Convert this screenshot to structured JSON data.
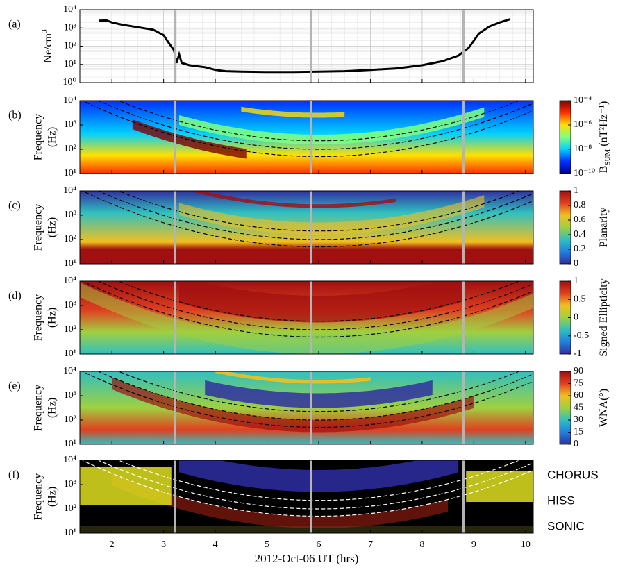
{
  "chart_data": {
    "xlabel": "2012-Oct-06 UT (hrs)",
    "xlim": [
      1.38,
      10.15
    ],
    "xticks": [
      2,
      3,
      4,
      5,
      6,
      7,
      8,
      9,
      10
    ],
    "vlines": [
      3.22,
      5.85,
      8.8
    ],
    "panels": [
      {
        "type": "line",
        "panel_label": "(a)",
        "ylabel": "Ne/cm",
        "ylabel_sup": "3",
        "log_y": true,
        "grid": true,
        "color": "#000000",
        "ylim": [
          1,
          10000
        ],
        "yticks": [
          {
            "value": 1,
            "label": "10⁰"
          },
          {
            "value": 10,
            "label": "10¹"
          },
          {
            "value": 100,
            "label": "10²"
          },
          {
            "value": 1000,
            "label": "10³"
          },
          {
            "value": 10000,
            "label": "10⁴"
          }
        ],
        "x": [
          1.75,
          1.9,
          2.0,
          2.2,
          2.5,
          2.8,
          3.0,
          3.1,
          3.2,
          3.25,
          3.3,
          3.35,
          3.5,
          3.8,
          4.0,
          4.2,
          4.5,
          5.0,
          5.5,
          6.0,
          6.5,
          7.0,
          7.5,
          8.0,
          8.4,
          8.7,
          8.9,
          9.1,
          9.3,
          9.5,
          9.7
        ],
        "values": [
          2500,
          2600,
          2000,
          1500,
          1100,
          800,
          400,
          150,
          60,
          12,
          35,
          12,
          9,
          7,
          5,
          4.2,
          4,
          3.8,
          3.8,
          4,
          4.2,
          5,
          6,
          9,
          15,
          30,
          80,
          500,
          1200,
          2000,
          3000
        ]
      },
      {
        "type": "spectrogram",
        "panel_label": "(b)",
        "ylabel": [
          "Frequency",
          "(Hz)"
        ],
        "log_y": true,
        "ylim": [
          10,
          10000
        ],
        "yticks": [
          {
            "value": 10,
            "label": "10¹"
          },
          {
            "value": 100,
            "label": "10²"
          },
          {
            "value": 1000,
            "label": "10³"
          },
          {
            "value": 10000,
            "label": "10⁴"
          }
        ],
        "colorbar": {
          "label": "B",
          "label_sub": "SUM",
          "label_rest": " (nT²Hz⁻¹)",
          "log": true,
          "lim": [
            1e-10,
            0.0001
          ],
          "ticks": [
            {
              "value": 0.0001,
              "label": "10⁻⁴"
            },
            {
              "value": 1e-06,
              "label": "10⁻⁶"
            },
            {
              "value": 1e-08,
              "label": "10⁻⁸"
            },
            {
              "value": 1e-10,
              "label": "10⁻¹⁰"
            }
          ],
          "colormap": [
            "#00008f",
            "#0030ff",
            "#00d0ff",
            "#80ff80",
            "#ffe000",
            "#ff3000",
            "#800000"
          ]
        }
      },
      {
        "type": "spectrogram",
        "panel_label": "(c)",
        "ylabel": [
          "Frequency",
          "(Hz)"
        ],
        "log_y": true,
        "ylim": [
          10,
          10000
        ],
        "yticks": [
          {
            "value": 10,
            "label": "10¹"
          },
          {
            "value": 100,
            "label": "10²"
          },
          {
            "value": 1000,
            "label": "10³"
          },
          {
            "value": 10000,
            "label": "10⁴"
          }
        ],
        "colorbar": {
          "label": "Planarity",
          "log": false,
          "lim": [
            0,
            1
          ],
          "ticks": [
            0,
            0.2,
            0.4,
            0.6,
            0.8,
            1
          ],
          "colormap": [
            "#3030a0",
            "#2080e0",
            "#30c0c0",
            "#a0d040",
            "#f0c020",
            "#e04020",
            "#a01010"
          ]
        }
      },
      {
        "type": "spectrogram",
        "panel_label": "(d)",
        "ylabel": [
          "Frequency",
          "(Hz)"
        ],
        "log_y": true,
        "ylim": [
          10,
          10000
        ],
        "yticks": [
          {
            "value": 10,
            "label": "10¹"
          },
          {
            "value": 100,
            "label": "10²"
          },
          {
            "value": 1000,
            "label": "10³"
          },
          {
            "value": 10000,
            "label": "10⁴"
          }
        ],
        "colorbar": {
          "label": "Signed Ellipticity",
          "log": false,
          "lim": [
            -1,
            1
          ],
          "ticks": [
            -1,
            -0.5,
            0,
            0.5,
            1
          ],
          "colormap": [
            "#3030a0",
            "#2080e0",
            "#30c0c0",
            "#a0d040",
            "#f0c020",
            "#e04020",
            "#a01010"
          ]
        }
      },
      {
        "type": "spectrogram",
        "panel_label": "(e)",
        "ylabel": [
          "Frequency",
          "(Hz)"
        ],
        "log_y": true,
        "ylim": [
          10,
          10000
        ],
        "yticks": [
          {
            "value": 10,
            "label": "10¹"
          },
          {
            "value": 100,
            "label": "10²"
          },
          {
            "value": 1000,
            "label": "10³"
          },
          {
            "value": 10000,
            "label": "10⁴"
          }
        ],
        "colorbar": {
          "label": "WNA(°)",
          "log": false,
          "lim": [
            0,
            90
          ],
          "ticks": [
            0,
            15,
            30,
            45,
            60,
            75,
            90
          ],
          "colormap": [
            "#3030a0",
            "#2080e0",
            "#30c0c0",
            "#a0d040",
            "#f0c020",
            "#e04020",
            "#a01010"
          ]
        }
      },
      {
        "type": "spectrogram",
        "panel_label": "(f)",
        "ylabel": [
          "Frequency",
          "(Hz)"
        ],
        "log_y": true,
        "ylim": [
          10,
          10000
        ],
        "yticks": [
          {
            "value": 10,
            "label": "10¹"
          },
          {
            "value": 100,
            "label": "10²"
          },
          {
            "value": 1000,
            "label": "10³"
          },
          {
            "value": 10000,
            "label": "10⁴"
          }
        ],
        "legend": [
          {
            "name": "CHORUS",
            "color": "#3b3bb8"
          },
          {
            "name": "HISS",
            "color": "#f0f020"
          },
          {
            "name": "SONIC",
            "color": "#d03020"
          }
        ]
      }
    ]
  }
}
